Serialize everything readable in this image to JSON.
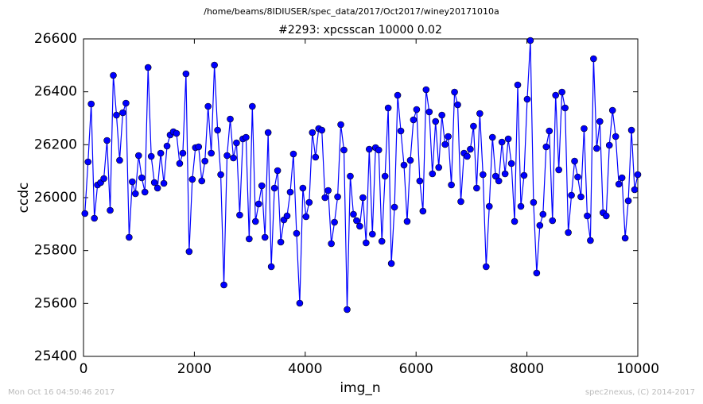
{
  "chart_data": {
    "type": "line",
    "suptitle": "/home/beams/8IDIUSER/spec_data/2017/Oct2017/winey20171010a",
    "title": "#2293: xpcsscan 10000 0.02",
    "x_label": "img_n",
    "y_label": "ccdc",
    "footer_left": "Mon Oct 16 04:50:46 2017",
    "footer_right": "spec2nexus, (C) 2014-2017",
    "x": [
      25,
      82,
      139,
      196,
      253,
      310,
      367,
      424,
      481,
      538,
      595,
      652,
      709,
      766,
      823,
      880,
      937,
      994,
      1051,
      1108,
      1165,
      1222,
      1279,
      1336,
      1393,
      1450,
      1507,
      1564,
      1621,
      1678,
      1735,
      1792,
      1849,
      1906,
      1963,
      2020,
      2077,
      2134,
      2191,
      2248,
      2305,
      2362,
      2419,
      2476,
      2533,
      2590,
      2647,
      2704,
      2761,
      2818,
      2875,
      2932,
      2989,
      3046,
      3103,
      3160,
      3217,
      3274,
      3331,
      3388,
      3445,
      3502,
      3559,
      3616,
      3673,
      3730,
      3787,
      3844,
      3901,
      3958,
      4015,
      4072,
      4129,
      4186,
      4243,
      4300,
      4357,
      4414,
      4471,
      4528,
      4585,
      4642,
      4699,
      4756,
      4813,
      4870,
      4927,
      4984,
      5041,
      5098,
      5155,
      5212,
      5269,
      5326,
      5383,
      5440,
      5497,
      5554,
      5611,
      5668,
      5725,
      5782,
      5839,
      5896,
      5953,
      6010,
      6067,
      6124,
      6181,
      6238,
      6295,
      6352,
      6409,
      6466,
      6523,
      6580,
      6637,
      6694,
      6751,
      6808,
      6865,
      6922,
      6979,
      7036,
      7093,
      7150,
      7207,
      7264,
      7321,
      7378,
      7435,
      7492,
      7549,
      7606,
      7663,
      7720,
      7777,
      7834,
      7891,
      7948,
      8005,
      8062,
      8119,
      8176,
      8233,
      8290,
      8347,
      8404,
      8461,
      8518,
      8575,
      8632,
      8689,
      8746,
      8803,
      8860,
      8917,
      8974,
      9031,
      9088,
      9145,
      9202,
      9259,
      9316,
      9373,
      9430,
      9487,
      9544,
      9601,
      9658,
      9715,
      9772,
      9829,
      9886,
      9943,
      10000
    ],
    "series": [
      {
        "color": "#0000ff",
        "values": [
          25940,
          26135,
          26354,
          25922,
          26048,
          26057,
          26072,
          26216,
          25952,
          26462,
          26312,
          26141,
          26321,
          26357,
          25850,
          26060,
          26015,
          26159,
          26075,
          26021,
          26492,
          26156,
          26057,
          26036,
          26168,
          26054,
          26195,
          26237,
          26249,
          26243,
          26129,
          26168,
          26468,
          25796,
          26069,
          26189,
          26192,
          26063,
          26138,
          26345,
          26168,
          26501,
          26255,
          26087,
          25670,
          26159,
          26297,
          26150,
          26207,
          25934,
          26222,
          26228,
          25844,
          26345,
          25910,
          25976,
          26045,
          25850,
          26246,
          25739,
          26036,
          26102,
          25832,
          25916,
          25931,
          26021,
          26165,
          25865,
          25601,
          26036,
          25928,
          25982,
          26246,
          26153,
          26261,
          26255,
          26000,
          26027,
          25826,
          25907,
          26003,
          26276,
          26180,
          25577,
          26081,
          25937,
          25913,
          25892,
          26000,
          25829,
          26183,
          25862,
          26189,
          26180,
          25835,
          26081,
          26339,
          25751,
          25964,
          26387,
          26252,
          26123,
          25910,
          26141,
          26294,
          26333,
          26063,
          25949,
          26408,
          26324,
          26090,
          26288,
          26114,
          26312,
          26201,
          26231,
          26048,
          26399,
          26351,
          25985,
          26168,
          26156,
          26183,
          26270,
          26036,
          26318,
          26087,
          25739,
          25967,
          26228,
          26081,
          26063,
          26210,
          26090,
          26222,
          26129,
          25910,
          26426,
          25967,
          26084,
          26372,
          26594,
          25982,
          25715,
          25895,
          25937,
          26192,
          26252,
          25913,
          26387,
          26105,
          26399,
          26339,
          25868,
          26009,
          26138,
          26078,
          26003,
          26261,
          25931,
          25838,
          26525,
          26186,
          26288,
          25943,
          25931,
          26198,
          26330,
          26231,
          26051,
          26075,
          25847,
          25988,
          26255,
          26030,
          26087
        ]
      }
    ],
    "xlim": [
      0,
      10000
    ],
    "ylim": [
      25400,
      26600
    ],
    "xticks": [
      0,
      2000,
      4000,
      6000,
      8000,
      10000
    ],
    "yticks": [
      25400,
      25600,
      25800,
      26000,
      26200,
      26400,
      26600
    ]
  }
}
